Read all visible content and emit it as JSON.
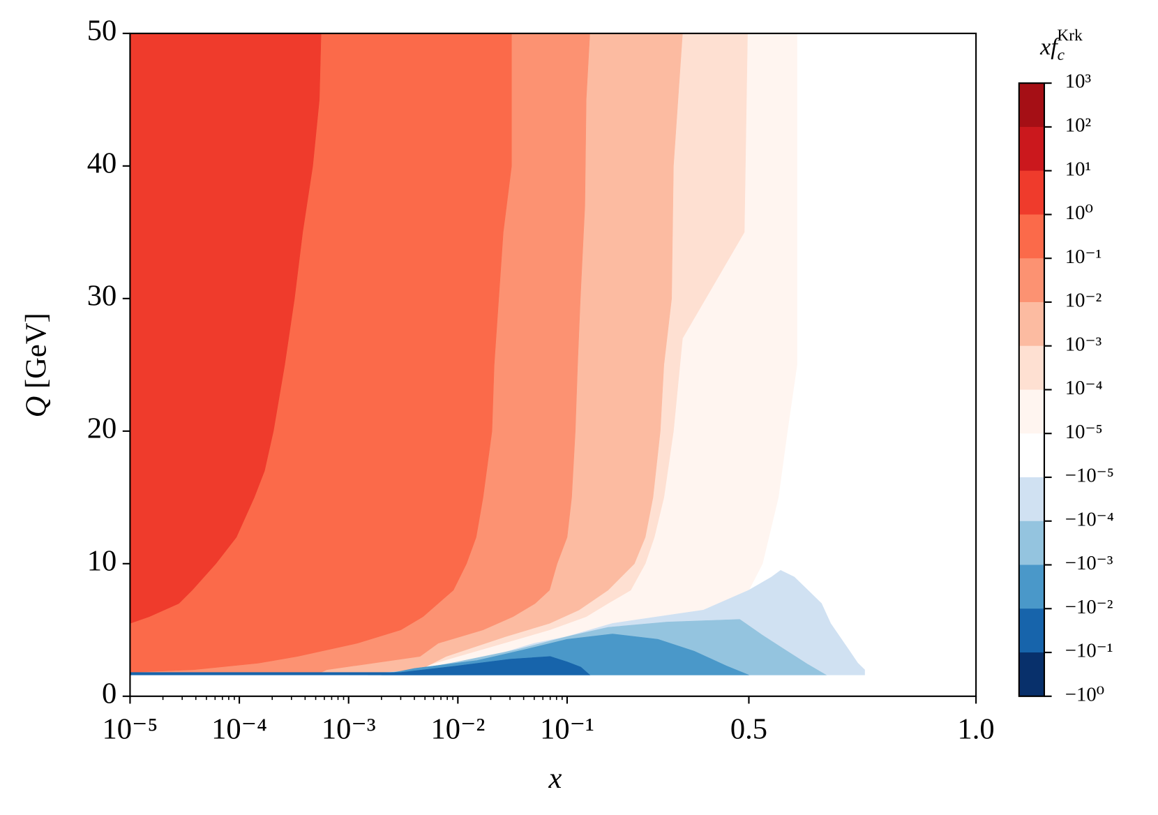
{
  "chart_data": {
    "type": "contourf",
    "x_label": "x",
    "y_label": {
      "var": "Q",
      "unit": "[GeV]"
    },
    "xscale": "log-linear",
    "xlinthresh": 0.1,
    "xlim": [
      1e-05,
      1
    ],
    "ylim": [
      0,
      50
    ],
    "xticks": [
      {
        "value": 1e-05,
        "label": "10⁻⁵"
      },
      {
        "value": 0.0001,
        "label": "10⁻⁴"
      },
      {
        "value": 0.001,
        "label": "10⁻³"
      },
      {
        "value": 0.01,
        "label": "10⁻²"
      },
      {
        "value": 0.1,
        "label": "10⁻¹"
      },
      0.5,
      {
        "value": 1,
        "label": "1.0"
      }
    ],
    "xminorticks": [
      2e-05,
      3e-05,
      4e-05,
      5e-05,
      6e-05,
      7e-05,
      8e-05,
      9e-05,
      0.0002,
      0.0003,
      0.0004,
      0.0005,
      0.0006,
      0.0007,
      0.0008,
      0.0009,
      0.002,
      0.003,
      0.004,
      0.005,
      0.006,
      0.007,
      0.008,
      0.009,
      0.02,
      0.03,
      0.04,
      0.05,
      0.06,
      0.07,
      0.08,
      0.09
    ],
    "yticks": [
      0,
      10,
      20,
      30,
      40,
      50
    ],
    "colorbar": {
      "label": {
        "base": "xf",
        "sub": "c",
        "sup": "Krk"
      },
      "ticks": [
        {
          "value": 1000,
          "label": "10³"
        },
        {
          "value": 100,
          "label": "10²"
        },
        {
          "value": 10,
          "label": "10¹"
        },
        {
          "value": 1,
          "label": "10⁰"
        },
        {
          "value": 0.1,
          "label": "10⁻¹"
        },
        {
          "value": 0.01,
          "label": "10⁻²"
        },
        {
          "value": 0.001,
          "label": "10⁻³"
        },
        {
          "value": 0.0001,
          "label": "10⁻⁴"
        },
        {
          "value": 1e-05,
          "label": "10⁻⁵"
        },
        {
          "value": -1e-05,
          "label": "−10⁻⁵"
        },
        {
          "value": -0.0001,
          "label": "−10⁻⁴"
        },
        {
          "value": -0.001,
          "label": "−10⁻³"
        },
        {
          "value": -0.01,
          "label": "−10⁻²"
        },
        {
          "value": -0.1,
          "label": "−10⁻¹"
        },
        {
          "value": -1,
          "label": "−10⁰"
        }
      ],
      "colors": [
        "#a50f15",
        "#cb181d",
        "#ef3b2c",
        "#fb6a4a",
        "#fc9272",
        "#fcbba1",
        "#fee0d2",
        "#fff5f0",
        "#ffffff",
        "#d0e1f2",
        "#94c4df",
        "#4a98c9",
        "#1764ab",
        "#08306b"
      ]
    },
    "regions": [
      {
        "color": "#fff5f0",
        "x": [
          0.606,
          0.606,
          0.585,
          0.565,
          0.53,
          0.5,
          0.45,
          0.35,
          0.25,
          0.2,
          0.1,
          0.01,
          0.001,
          1e-05,
          1e-05
        ],
        "q": [
          50,
          25,
          20,
          15,
          10,
          8,
          7,
          6,
          5.5,
          5,
          4,
          2.5,
          1.74,
          1.74,
          50
        ]
      },
      {
        "color": "#fee0d2",
        "x": [
          0.497,
          0.49,
          0.354,
          0.334,
          0.313,
          0.292,
          0.272,
          0.24,
          0.19,
          0.142,
          0.069,
          0.01,
          0.003,
          1e-05,
          1e-05
        ],
        "q": [
          50,
          35,
          27,
          20,
          15,
          12,
          10,
          8,
          7,
          6,
          5,
          3,
          1.74,
          1.74,
          50
        ]
      },
      {
        "color": "#fcbba1",
        "x": [
          0.354,
          0.334,
          0.33,
          0.313,
          0.305,
          0.289,
          0.272,
          0.248,
          0.19,
          0.126,
          0.069,
          0.0275,
          0.0078,
          0.0045,
          0.003,
          1e-05,
          1e-05
        ],
        "q": [
          50,
          40,
          30,
          25,
          20,
          15,
          12,
          10,
          8,
          6.5,
          5.5,
          4.5,
          3,
          2,
          1.74,
          1.74,
          50
        ]
      },
      {
        "color": "#fc9272",
        "x": [
          0.15,
          0.142,
          0.139,
          0.129,
          0.123,
          0.118,
          0.11,
          0.1,
          0.081,
          0.069,
          0.051,
          0.032,
          0.017,
          0.0066,
          0.0045,
          0.00063,
          0.00054,
          1e-05,
          1e-05
        ],
        "q": [
          50,
          45,
          37,
          30,
          25,
          20,
          15,
          12,
          10,
          8,
          7,
          6,
          5,
          4,
          3,
          2,
          1.74,
          1.74,
          50
        ]
      },
      {
        "color": "#fb6a4a",
        "x": [
          0.031,
          0.031,
          0.026,
          0.0215,
          0.0205,
          0.017,
          0.0147,
          0.012,
          0.0091,
          0.0066,
          0.0048,
          0.003,
          0.0012,
          0.00034,
          0.00015,
          3.8e-05,
          1e-05,
          1e-05
        ],
        "q": [
          50,
          40,
          35,
          25,
          20,
          15,
          12,
          10,
          8,
          7,
          6,
          5,
          4,
          3,
          2.5,
          2,
          1.8,
          50
        ]
      },
      {
        "color": "#ef3b2c",
        "x": [
          0.00056,
          0.00054,
          0.00047,
          0.00038,
          0.00032,
          0.00026,
          0.000205,
          0.00017,
          0.000137,
          9.4e-05,
          6.1e-05,
          3.7e-05,
          2.8e-05,
          1.5e-05,
          1e-05,
          1e-05
        ],
        "q": [
          50,
          45,
          40,
          35,
          30,
          25,
          20,
          17,
          15,
          12,
          10,
          8,
          7,
          6,
          5.5,
          50
        ]
      },
      {
        "color": "#d0e1f2",
        "x": [
          0.001,
          0.755,
          0.755,
          0.74,
          0.72,
          0.7,
          0.68,
          0.66,
          0.63,
          0.6,
          0.57,
          0.55,
          0.5,
          0.4,
          0.3,
          0.2,
          0.15,
          0.1,
          0.05,
          0.02,
          0.005
        ],
        "q": [
          1.6,
          1.6,
          2,
          2.5,
          3.5,
          4.5,
          5.5,
          7,
          8,
          9,
          9.5,
          9,
          8,
          6.5,
          6,
          5.5,
          5,
          4.5,
          4,
          3,
          2
        ]
      },
      {
        "color": "#94c4df",
        "x": [
          0.0015,
          0.67,
          0.63,
          0.58,
          0.53,
          0.48,
          0.32,
          0.19,
          0.1,
          0.034,
          0.01,
          0.004
        ],
        "q": [
          1.6,
          1.6,
          2.4,
          3.5,
          4.6,
          5.8,
          5.6,
          5.2,
          4.5,
          3.5,
          2.6,
          2
        ]
      },
      {
        "color": "#4a98c9",
        "x": [
          0.002,
          0.5,
          0.45,
          0.38,
          0.3,
          0.2,
          0.1,
          0.04,
          0.015,
          0.004
        ],
        "q": [
          1.6,
          1.6,
          2.3,
          3.4,
          4.3,
          4.7,
          4.3,
          3.5,
          2.7,
          2.1
        ]
      },
      {
        "color": "#1764ab",
        "x": [
          1e-05,
          0.15,
          0.13,
          0.1,
          0.07,
          0.03,
          0.01,
          0.003,
          1e-05
        ],
        "q": [
          1.6,
          1.6,
          2.2,
          2.6,
          3,
          2.8,
          2.3,
          1.8,
          1.8
        ]
      }
    ]
  }
}
